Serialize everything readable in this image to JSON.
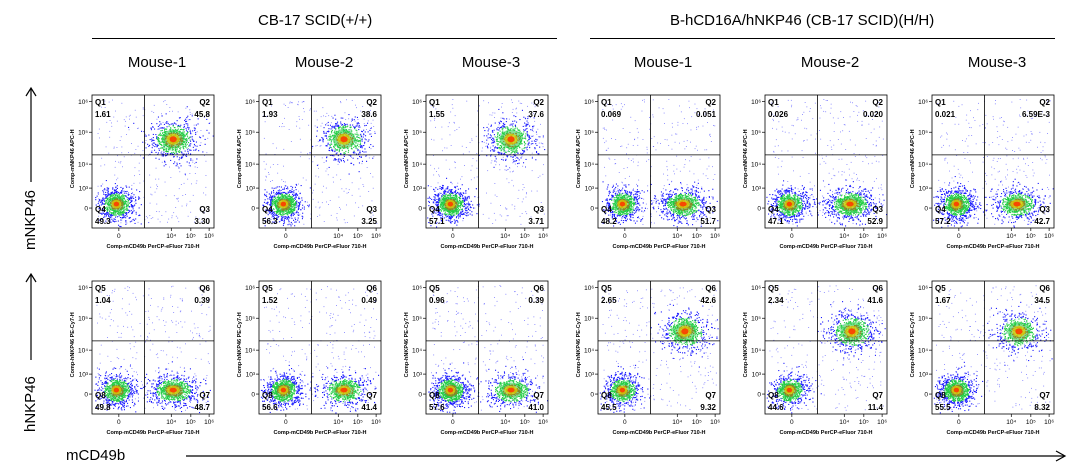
{
  "groups": [
    {
      "title": "CB-17 SCID(+/+)"
    },
    {
      "title": "B-hCD16A/hNKP46 (CB-17 SCID)(H/H)"
    }
  ],
  "mouse_labels": [
    "Mouse-1",
    "Mouse-2",
    "Mouse-3",
    "Mouse-1",
    "Mouse-2",
    "Mouse-3"
  ],
  "row_labels": [
    "mNKP46",
    "hNKP46"
  ],
  "x_axis_label": "mCD49b",
  "colors": {
    "density_low": "#1a1aff",
    "density_mid": "#22cc44",
    "density_high": "#ff3300",
    "gate": "#000000"
  },
  "chart_data": [
    {
      "type": "scatter",
      "row": 1,
      "col": 1,
      "xlabel": "Comp-mCD49b PerCP-eFluor 710-H",
      "ylabel": "Comp-mNKP46 APC-H",
      "xticks": [
        "0",
        "10⁴",
        "10⁵",
        "10⁶"
      ],
      "yticks": [
        "10⁶",
        "10⁵",
        "10⁴",
        "10³",
        "0"
      ],
      "quadrants": [
        {
          "name": "Q1",
          "value": "1.61"
        },
        {
          "name": "Q2",
          "value": "45.8"
        },
        {
          "name": "Q3",
          "value": "3.30"
        },
        {
          "name": "Q4",
          "value": "49.3"
        }
      ],
      "populations": [
        {
          "x": 0,
          "y": 0,
          "pct": 49.3
        },
        {
          "x": 4.1,
          "y": 4.8,
          "pct": 45.8
        }
      ]
    },
    {
      "type": "scatter",
      "row": 1,
      "col": 2,
      "xlabel": "Comp-mCD49b PerCP-eFluor 710-H",
      "ylabel": "Comp-mNKP46 APC-H",
      "xticks": [
        "0",
        "10⁴",
        "10⁵",
        "10⁶"
      ],
      "yticks": [
        "10⁶",
        "10⁵",
        "10⁴",
        "10³",
        "0"
      ],
      "quadrants": [
        {
          "name": "Q1",
          "value": "1.93"
        },
        {
          "name": "Q2",
          "value": "38.6"
        },
        {
          "name": "Q3",
          "value": "3.25"
        },
        {
          "name": "Q4",
          "value": "56.3"
        }
      ],
      "populations": [
        {
          "x": 0,
          "y": 0,
          "pct": 56.3
        },
        {
          "x": 4.3,
          "y": 4.8,
          "pct": 38.6
        }
      ]
    },
    {
      "type": "scatter",
      "row": 1,
      "col": 3,
      "xlabel": "Comp-mCD49b PerCP-eFluor 710-H",
      "ylabel": "Comp-mNKP46 APC-H",
      "xticks": [
        "0",
        "10⁴",
        "10⁵",
        "10⁶"
      ],
      "yticks": [
        "10⁶",
        "10⁵",
        "10⁴",
        "10³",
        "0"
      ],
      "quadrants": [
        {
          "name": "Q1",
          "value": "1.55"
        },
        {
          "name": "Q2",
          "value": "37.6"
        },
        {
          "name": "Q3",
          "value": "3.71"
        },
        {
          "name": "Q4",
          "value": "57.1"
        }
      ],
      "populations": [
        {
          "x": 0,
          "y": 0,
          "pct": 57.1
        },
        {
          "x": 4.3,
          "y": 4.8,
          "pct": 37.6
        }
      ]
    },
    {
      "type": "scatter",
      "row": 1,
      "col": 4,
      "xlabel": "Comp-mCD49b PerCP-eFluor 710-H",
      "ylabel": "Comp-mNKP46 APC-H",
      "xticks": [
        "0",
        "10⁴",
        "10⁵",
        "10⁶"
      ],
      "yticks": [
        "10⁶",
        "10⁵",
        "10⁴",
        "10³",
        "0"
      ],
      "quadrants": [
        {
          "name": "Q1",
          "value": "0.069"
        },
        {
          "name": "Q2",
          "value": "0.051"
        },
        {
          "name": "Q3",
          "value": "51.7"
        },
        {
          "name": "Q4",
          "value": "48.2"
        }
      ],
      "populations": [
        {
          "x": 0,
          "y": 0,
          "pct": 48.2
        },
        {
          "x": 4.3,
          "y": 0,
          "pct": 51.7
        }
      ]
    },
    {
      "type": "scatter",
      "row": 1,
      "col": 5,
      "xlabel": "Comp-mCD49b PerCP-eFluor 710-H",
      "ylabel": "Comp-mNKP46 APC-H",
      "xticks": [
        "0",
        "10⁴",
        "10⁵",
        "10⁶"
      ],
      "yticks": [
        "10⁶",
        "10⁵",
        "10⁴",
        "10³",
        "0"
      ],
      "quadrants": [
        {
          "name": "Q1",
          "value": "0.026"
        },
        {
          "name": "Q2",
          "value": "0.020"
        },
        {
          "name": "Q3",
          "value": "52.9"
        },
        {
          "name": "Q4",
          "value": "47.1"
        }
      ],
      "populations": [
        {
          "x": 0,
          "y": 0,
          "pct": 47.1
        },
        {
          "x": 4.3,
          "y": 0,
          "pct": 52.9
        }
      ]
    },
    {
      "type": "scatter",
      "row": 1,
      "col": 6,
      "xlabel": "Comp-mCD49b PerCP-eFluor 710-H",
      "ylabel": "Comp-mNKP46 APC-H",
      "xticks": [
        "0",
        "10⁴",
        "10⁵",
        "10⁶"
      ],
      "yticks": [
        "10⁶",
        "10⁵",
        "10⁴",
        "10³",
        "0"
      ],
      "quadrants": [
        {
          "name": "Q1",
          "value": "0.021"
        },
        {
          "name": "Q2",
          "value": "6.59E-3"
        },
        {
          "name": "Q3",
          "value": "42.7"
        },
        {
          "name": "Q4",
          "value": "57.2"
        }
      ],
      "populations": [
        {
          "x": 0,
          "y": 0,
          "pct": 57.2
        },
        {
          "x": 4.3,
          "y": 0,
          "pct": 42.7
        }
      ]
    },
    {
      "type": "scatter",
      "row": 2,
      "col": 1,
      "xlabel": "Comp-mCD49b PerCP-eFluor 710-H",
      "ylabel": "Comp-hNKP46 PE-Cy7-H",
      "xticks": [
        "0",
        "10⁴",
        "10⁵",
        "10⁶"
      ],
      "yticks": [
        "10⁶",
        "10⁵",
        "10⁴",
        "10³",
        "0"
      ],
      "quadrants": [
        {
          "name": "Q5",
          "value": "1.04"
        },
        {
          "name": "Q6",
          "value": "0.39"
        },
        {
          "name": "Q7",
          "value": "48.7"
        },
        {
          "name": "Q8",
          "value": "49.8"
        }
      ],
      "populations": [
        {
          "x": 0,
          "y": 0,
          "pct": 49.8
        },
        {
          "x": 4.1,
          "y": 0,
          "pct": 48.7
        }
      ]
    },
    {
      "type": "scatter",
      "row": 2,
      "col": 2,
      "xlabel": "Comp-mCD49b PerCP-eFluor 710-H",
      "ylabel": "Comp-hNKP46 PE-Cy7-H",
      "xticks": [
        "0",
        "10⁴",
        "10⁵",
        "10⁶"
      ],
      "yticks": [
        "10⁶",
        "10⁵",
        "10⁴",
        "10³",
        "0"
      ],
      "quadrants": [
        {
          "name": "Q5",
          "value": "1.52"
        },
        {
          "name": "Q6",
          "value": "0.49"
        },
        {
          "name": "Q7",
          "value": "41.4"
        },
        {
          "name": "Q8",
          "value": "56.6"
        }
      ],
      "populations": [
        {
          "x": 0,
          "y": 0,
          "pct": 56.6
        },
        {
          "x": 4.3,
          "y": 0,
          "pct": 41.4
        }
      ]
    },
    {
      "type": "scatter",
      "row": 2,
      "col": 3,
      "xlabel": "Comp-mCD49b PerCP-eFluor 710-H",
      "ylabel": "Comp-hNKP46 PE-Cy7-H",
      "xticks": [
        "0",
        "10⁴",
        "10⁵",
        "10⁶"
      ],
      "yticks": [
        "10⁶",
        "10⁵",
        "10⁴",
        "10³",
        "0"
      ],
      "quadrants": [
        {
          "name": "Q5",
          "value": "0.96"
        },
        {
          "name": "Q6",
          "value": "0.39"
        },
        {
          "name": "Q7",
          "value": "41.0"
        },
        {
          "name": "Q8",
          "value": "57.6"
        }
      ],
      "populations": [
        {
          "x": 0,
          "y": 0,
          "pct": 57.6
        },
        {
          "x": 4.3,
          "y": 0,
          "pct": 41.0
        }
      ]
    },
    {
      "type": "scatter",
      "row": 2,
      "col": 4,
      "xlabel": "Comp-mCD49b PerCP-eFluor 710-H",
      "ylabel": "Comp-hNKP46 PE-Cy7-H",
      "xticks": [
        "0",
        "10⁴",
        "10⁵",
        "10⁶"
      ],
      "yticks": [
        "10⁶",
        "10⁵",
        "10⁴",
        "10³",
        "0"
      ],
      "quadrants": [
        {
          "name": "Q5",
          "value": "2.65"
        },
        {
          "name": "Q6",
          "value": "42.6"
        },
        {
          "name": "Q7",
          "value": "9.32"
        },
        {
          "name": "Q8",
          "value": "45.5"
        }
      ],
      "populations": [
        {
          "x": 0,
          "y": 0,
          "pct": 45.5
        },
        {
          "x": 4.4,
          "y": 4.6,
          "pct": 42.6
        }
      ]
    },
    {
      "type": "scatter",
      "row": 2,
      "col": 5,
      "xlabel": "Comp-mCD49b PerCP-eFluor 710-H",
      "ylabel": "Comp-hNKP46 PE-Cy7-H",
      "xticks": [
        "0",
        "10⁴",
        "10⁵",
        "10⁶"
      ],
      "yticks": [
        "10⁶",
        "10⁵",
        "10⁴",
        "10³",
        "0"
      ],
      "quadrants": [
        {
          "name": "Q5",
          "value": "2.34"
        },
        {
          "name": "Q6",
          "value": "41.6"
        },
        {
          "name": "Q7",
          "value": "11.4"
        },
        {
          "name": "Q8",
          "value": "44.6"
        }
      ],
      "populations": [
        {
          "x": 0,
          "y": 0,
          "pct": 44.6
        },
        {
          "x": 4.4,
          "y": 4.6,
          "pct": 41.6
        }
      ]
    },
    {
      "type": "scatter",
      "row": 2,
      "col": 6,
      "xlabel": "Comp-mCD49b PerCP-eFluor 710-H",
      "ylabel": "Comp-hNKP46 PE-Cy7-H",
      "xticks": [
        "0",
        "10⁴",
        "10⁵",
        "10⁶"
      ],
      "yticks": [
        "10⁶",
        "10⁵",
        "10⁴",
        "10³",
        "0"
      ],
      "quadrants": [
        {
          "name": "Q5",
          "value": "1.67"
        },
        {
          "name": "Q6",
          "value": "34.5"
        },
        {
          "name": "Q7",
          "value": "8.32"
        },
        {
          "name": "Q8",
          "value": "55.5"
        }
      ],
      "populations": [
        {
          "x": 0,
          "y": 0,
          "pct": 55.5
        },
        {
          "x": 4.4,
          "y": 4.6,
          "pct": 34.5
        }
      ]
    }
  ]
}
